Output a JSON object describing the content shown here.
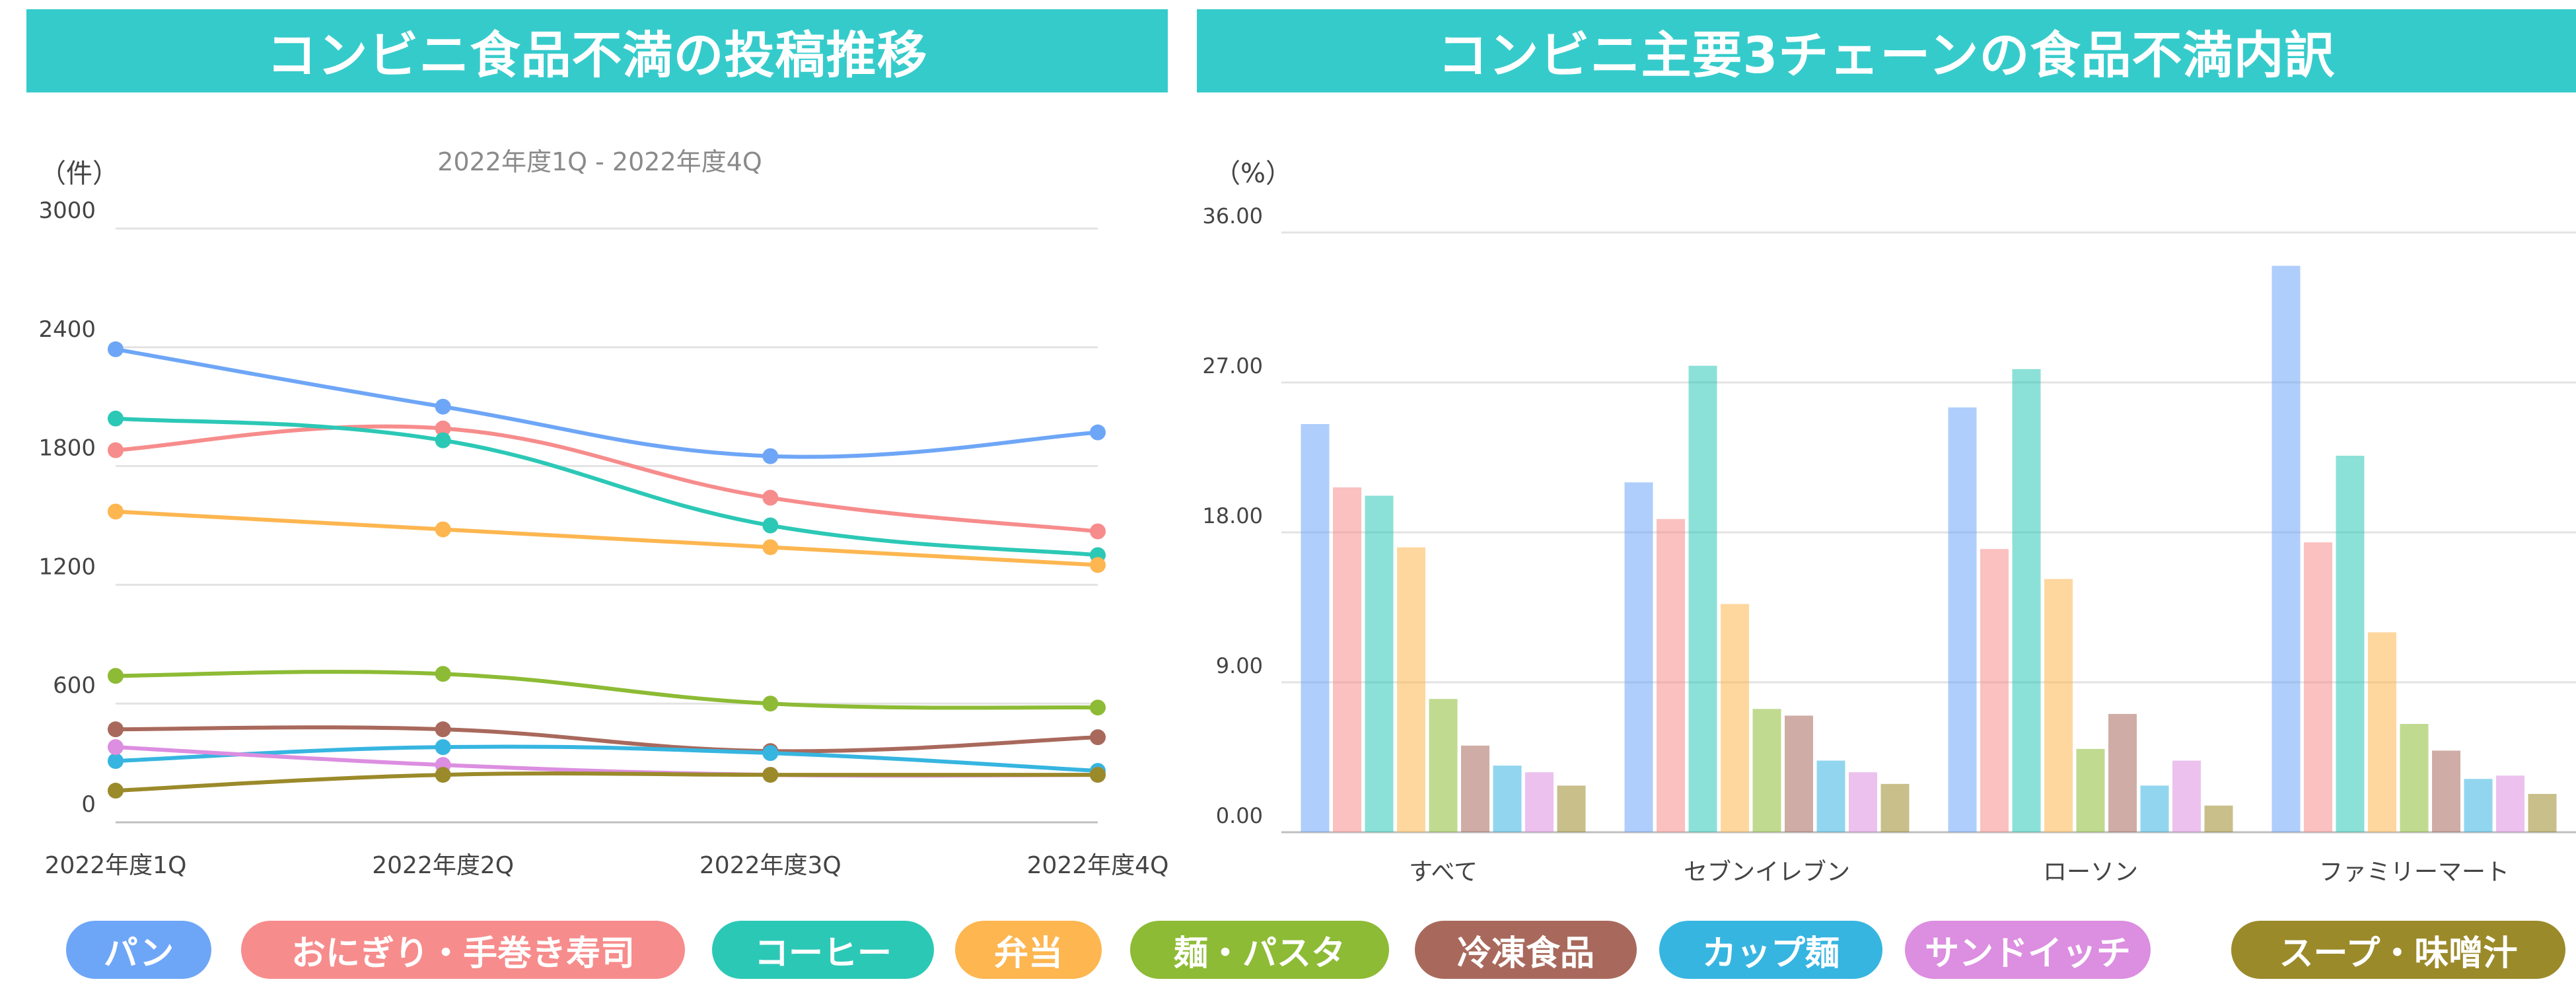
{
  "left_panel": {
    "heading": "コンビニ食品不満の投稿推移"
  },
  "right_panel": {
    "heading": "コンビニ主要3チェーンの食品不満内訳"
  },
  "series_colors": [
    "#6ea6f7",
    "#f78c8c",
    "#2cc8b6",
    "#fdb650",
    "#8dbb35",
    "#a8695c",
    "#36b5e0",
    "#dc8ee0",
    "#9b8a2a"
  ],
  "chart_data": [
    {
      "type": "line",
      "title": "",
      "subtitle": "2022年度1Q - 2022年度4Q",
      "ylabel": "（件）",
      "xlabel": "",
      "x": [
        "2022年度1Q",
        "2022年度2Q",
        "2022年度3Q",
        "2022年度4Q"
      ],
      "ylim": [
        0,
        3000
      ],
      "yticks": [
        "0",
        "600",
        "1200",
        "1800",
        "2400",
        "3000"
      ],
      "grid": true,
      "series": [
        {
          "name": "パン",
          "values": [
            2390,
            2100,
            1850,
            1970
          ]
        },
        {
          "name": "おにぎり・手巻き寿司",
          "values": [
            1880,
            1990,
            1640,
            1470
          ]
        },
        {
          "name": "コーヒー",
          "values": [
            2040,
            1930,
            1500,
            1350
          ]
        },
        {
          "name": "弁当",
          "values": [
            1570,
            1480,
            1390,
            1300
          ]
        },
        {
          "name": "麺・パスタ",
          "values": [
            740,
            750,
            600,
            580
          ]
        },
        {
          "name": "冷凍食品",
          "values": [
            470,
            470,
            360,
            430
          ]
        },
        {
          "name": "カップ麺",
          "values": [
            310,
            380,
            350,
            260
          ]
        },
        {
          "name": "サンドイッチ",
          "values": [
            380,
            290,
            240,
            240
          ]
        },
        {
          "name": "スープ・味噌汁",
          "values": [
            160,
            240,
            240,
            240
          ]
        }
      ]
    },
    {
      "type": "bar",
      "title": "",
      "ylabel": "（%）",
      "xlabel": "",
      "categories": [
        "すべて",
        "セブンイレブン",
        "ローソン",
        "ファミリーマート"
      ],
      "ylim": [
        0,
        36
      ],
      "yticks": [
        "0.00",
        "9.00",
        "18.00",
        "27.00",
        "36.00"
      ],
      "grid": true,
      "series": [
        {
          "name": "パン",
          "values": [
            24.5,
            21.0,
            25.5,
            34.0
          ]
        },
        {
          "name": "おにぎり・手巻き寿司",
          "values": [
            20.7,
            18.8,
            17.0,
            17.4
          ]
        },
        {
          "name": "コーヒー",
          "values": [
            20.2,
            28.0,
            27.8,
            22.6
          ]
        },
        {
          "name": "弁当",
          "values": [
            17.1,
            13.7,
            15.2,
            12.0
          ]
        },
        {
          "name": "麺・パスタ",
          "values": [
            8.0,
            7.4,
            5.0,
            6.5
          ]
        },
        {
          "name": "冷凍食品",
          "values": [
            5.2,
            7.0,
            7.1,
            4.9
          ]
        },
        {
          "name": "カップ麺",
          "values": [
            4.0,
            4.3,
            2.8,
            3.2
          ]
        },
        {
          "name": "サンドイッチ",
          "values": [
            3.6,
            3.6,
            4.3,
            3.4
          ]
        },
        {
          "name": "スープ・味噌汁",
          "values": [
            2.8,
            2.9,
            1.6,
            2.3
          ]
        }
      ]
    }
  ]
}
